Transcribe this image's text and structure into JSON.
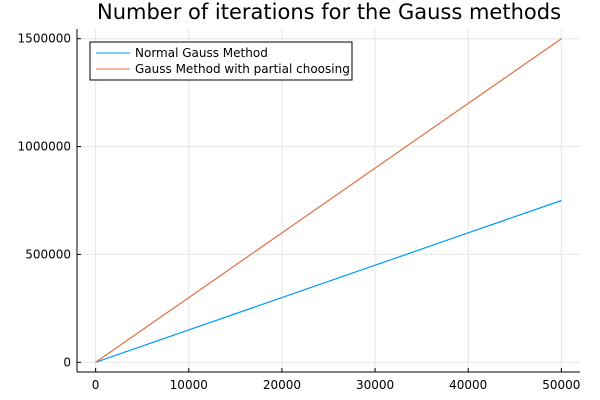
{
  "chart_data": {
    "type": "line",
    "title": "Number of iterations for the Gauss methods",
    "xlabel": "",
    "ylabel": "",
    "xlim": [
      -2000,
      52000
    ],
    "ylim": [
      -45000,
      1545000
    ],
    "xticks": [
      0,
      10000,
      20000,
      30000,
      40000,
      50000
    ],
    "xtick_labels": [
      "0",
      "10000",
      "20000",
      "30000",
      "40000",
      "50000"
    ],
    "yticks": [
      0,
      500000,
      1000000,
      1500000
    ],
    "ytick_labels": [
      "0",
      "500000",
      "1000000",
      "1500000"
    ],
    "grid": true,
    "legend_position": "top-left",
    "series": [
      {
        "name": "Normal Gauss Method",
        "color": "#009af9",
        "x": [
          0,
          10000,
          20000,
          30000,
          40000,
          50000
        ],
        "y": [
          0,
          150000,
          300000,
          450000,
          600000,
          750000
        ]
      },
      {
        "name": "Gauss Method with partial choosing",
        "color": "#e26f46",
        "x": [
          0,
          10000,
          20000,
          30000,
          40000,
          50000
        ],
        "y": [
          0,
          300000,
          600000,
          900000,
          1200000,
          1500000
        ]
      }
    ]
  }
}
